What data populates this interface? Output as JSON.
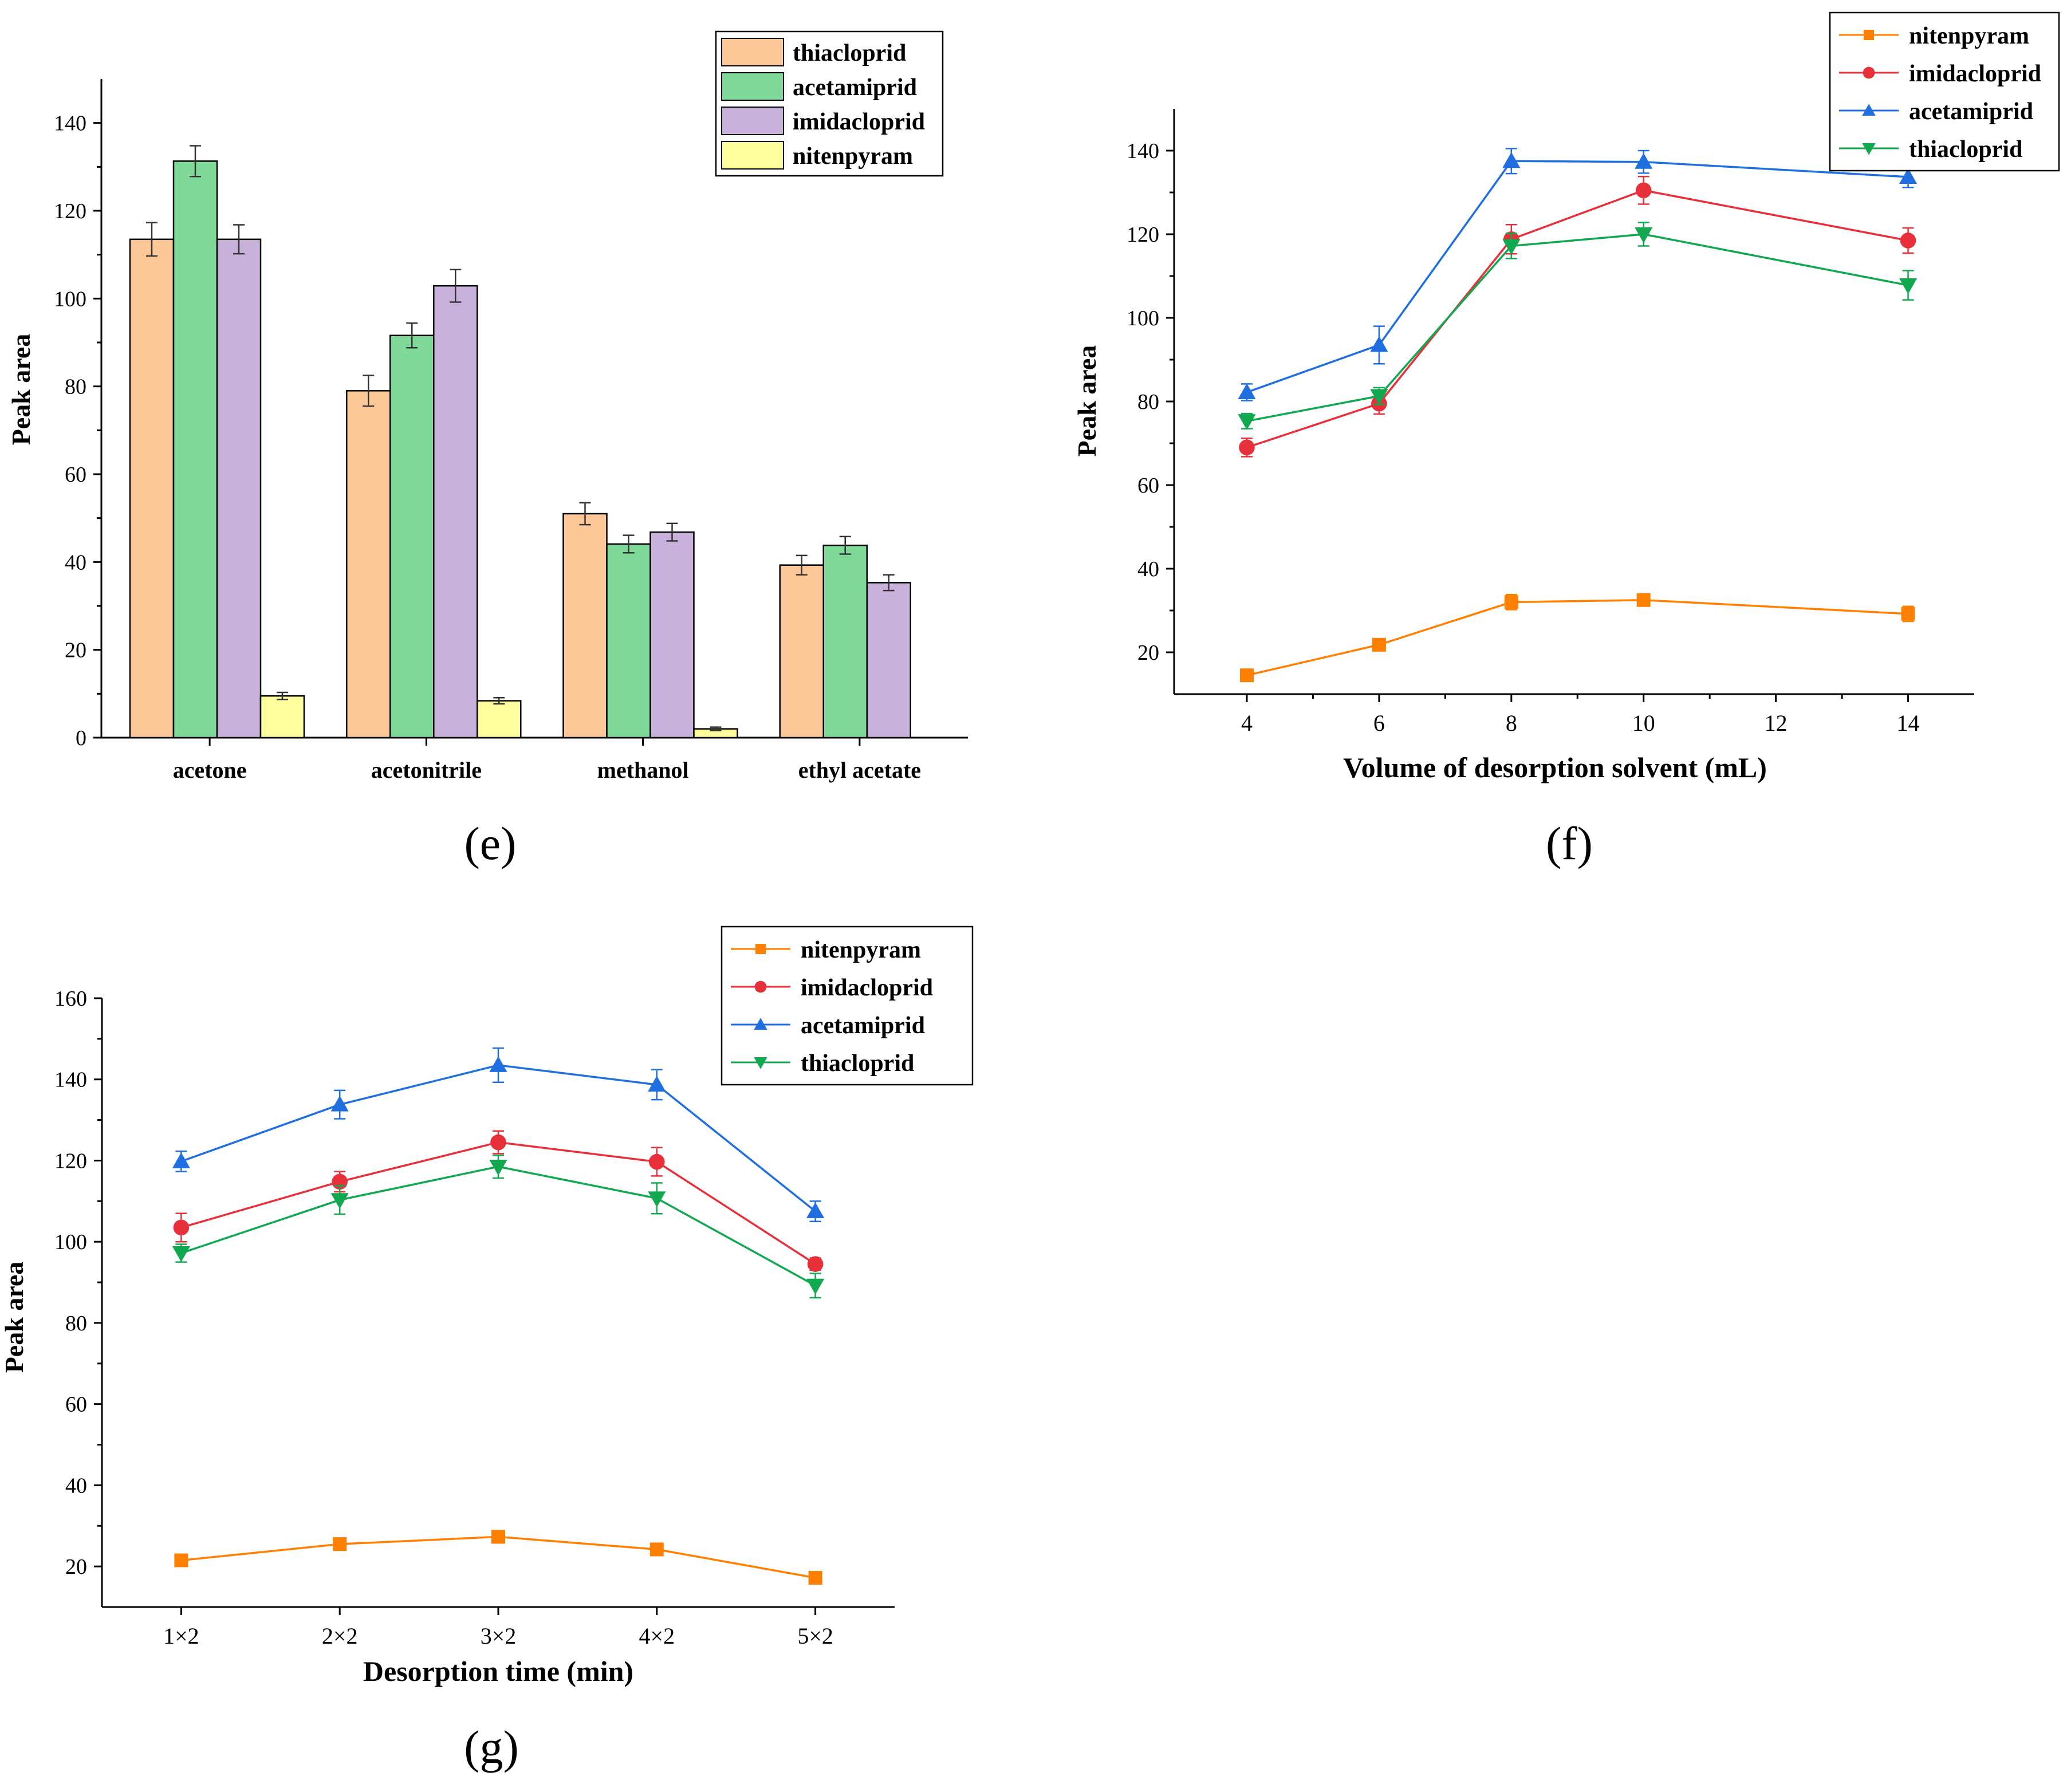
{
  "colors": {
    "thiacloprid_bar": "#FDC897",
    "acetamiprid_bar": "#7FD999",
    "imidacloprid_bar": "#C8B2DC",
    "nitenpyram_bar": "#FEFE9E",
    "nitenpyram_line": "#FF8000",
    "imidacloprid_line": "#E8303A",
    "acetamiprid_line": "#1F6FE0",
    "thiacloprid_line": "#11A850",
    "axis": "#000000"
  },
  "chart_data": [
    {
      "id": "e",
      "type": "bar",
      "panel_label": "(e)",
      "title": "",
      "xlabel": "",
      "ylabel": "Peak area",
      "ylim": [
        0,
        150
      ],
      "yticks": [
        0,
        20,
        40,
        60,
        80,
        100,
        120,
        140
      ],
      "categories": [
        "acetone",
        "acetonitrile",
        "methanol",
        "ethyl acetate"
      ],
      "legend_position": "top-right",
      "series": [
        {
          "name": "thiacloprid",
          "color_key": "thiacloprid_bar",
          "values": [
            113.5,
            79.0,
            51.0,
            39.3
          ],
          "errors": [
            3.8,
            3.5,
            2.5,
            2.2
          ]
        },
        {
          "name": "acetamiprid",
          "color_key": "acetamiprid_bar",
          "values": [
            131.3,
            91.6,
            44.1,
            43.8
          ],
          "errors": [
            3.5,
            2.8,
            2.0,
            2.0
          ]
        },
        {
          "name": "imidacloprid",
          "color_key": "imidacloprid_bar",
          "values": [
            113.5,
            102.9,
            46.8,
            35.3
          ],
          "errors": [
            3.3,
            3.7,
            2.0,
            1.8
          ]
        },
        {
          "name": "nitenpyram",
          "color_key": "nitenpyram_bar",
          "values": [
            9.5,
            8.4,
            2.0,
            null
          ],
          "errors": [
            0.8,
            0.7,
            0.4,
            null
          ]
        }
      ]
    },
    {
      "id": "f",
      "type": "line",
      "panel_label": "(f)",
      "title": "",
      "xlabel": "Volume of desorption solvent (mL)",
      "ylabel": "Peak area",
      "xlim": [
        2.9,
        15.0
      ],
      "ylim": [
        10,
        150
      ],
      "xticks": [
        4,
        6,
        8,
        10,
        12,
        14
      ],
      "yticks": [
        20,
        40,
        60,
        80,
        100,
        120,
        140
      ],
      "x": [
        4,
        6,
        8,
        10,
        14
      ],
      "legend_position": "top-right",
      "series": [
        {
          "name": "nitenpyram",
          "color_key": "nitenpyram_line",
          "marker": "square",
          "values": [
            14.5,
            21.8,
            32.0,
            32.5,
            29.2
          ],
          "errors": [
            0.8,
            0.9,
            1.8,
            1.2,
            1.8
          ]
        },
        {
          "name": "imidacloprid",
          "color_key": "imidacloprid_line",
          "marker": "circle",
          "values": [
            69.0,
            79.5,
            118.8,
            130.5,
            118.5
          ],
          "errors": [
            2.2,
            2.5,
            3.5,
            3.3,
            3.0
          ]
        },
        {
          "name": "acetamiprid",
          "color_key": "acetamiprid_line",
          "marker": "triangle-up",
          "values": [
            82.2,
            93.5,
            137.5,
            137.3,
            133.7
          ],
          "errors": [
            2.0,
            4.5,
            3.0,
            2.7,
            2.5
          ]
        },
        {
          "name": "thiacloprid",
          "color_key": "thiacloprid_line",
          "marker": "triangle-down",
          "values": [
            75.3,
            81.3,
            117.2,
            120.0,
            107.8
          ],
          "errors": [
            1.8,
            2.0,
            3.0,
            2.8,
            3.5
          ]
        }
      ]
    },
    {
      "id": "g",
      "type": "line",
      "panel_label": "(g)",
      "title": "",
      "xlabel": "Desorption time (min)",
      "ylabel": "Peak area",
      "xlim": [
        0.5,
        5.5
      ],
      "ylim": [
        10,
        160
      ],
      "xticks": [
        1,
        2,
        3,
        4,
        5
      ],
      "xtick_labels": [
        "1×2",
        "2×2",
        "3×2",
        "4×2",
        "5×2"
      ],
      "yticks": [
        20,
        40,
        60,
        80,
        100,
        120,
        140,
        160
      ],
      "x": [
        1,
        2,
        3,
        4,
        5
      ],
      "legend_position": "top-right",
      "series": [
        {
          "name": "nitenpyram",
          "color_key": "nitenpyram_line",
          "marker": "square",
          "values": [
            21.5,
            25.5,
            27.3,
            24.2,
            17.2
          ],
          "errors": [
            1.5,
            1.5,
            1.5,
            1.5,
            0.8
          ]
        },
        {
          "name": "imidacloprid",
          "color_key": "imidacloprid_line",
          "marker": "circle",
          "values": [
            103.5,
            114.8,
            124.5,
            119.7,
            94.5
          ],
          "errors": [
            3.5,
            2.5,
            2.8,
            3.5,
            1.5
          ]
        },
        {
          "name": "acetamiprid",
          "color_key": "acetamiprid_line",
          "marker": "triangle-up",
          "values": [
            119.8,
            133.8,
            143.5,
            138.7,
            107.5
          ],
          "errors": [
            2.5,
            3.5,
            4.2,
            3.7,
            2.5
          ]
        },
        {
          "name": "thiacloprid",
          "color_key": "thiacloprid_line",
          "marker": "triangle-down",
          "values": [
            97.2,
            110.3,
            118.5,
            110.7,
            89.2
          ],
          "errors": [
            2.2,
            3.5,
            2.8,
            3.8,
            3.0
          ]
        }
      ]
    }
  ]
}
